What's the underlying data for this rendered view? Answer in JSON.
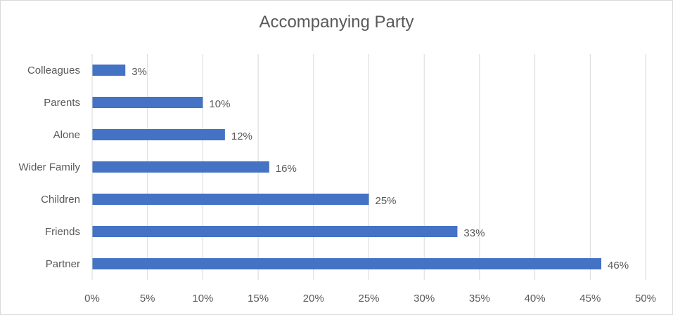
{
  "chart_data": {
    "type": "bar",
    "orientation": "horizontal",
    "title": "Accompanying Party",
    "xlabel": "",
    "ylabel": "",
    "categories": [
      "Colleagues",
      "Parents",
      "Alone",
      "Wider Family",
      "Children",
      "Friends",
      "Partner"
    ],
    "values": [
      3,
      10,
      12,
      16,
      25,
      33,
      46
    ],
    "data_labels": [
      "3%",
      "10%",
      "12%",
      "16%",
      "25%",
      "33%",
      "46%"
    ],
    "xlim": [
      0,
      50
    ],
    "x_ticks": [
      0,
      5,
      10,
      15,
      20,
      25,
      30,
      35,
      40,
      45,
      50
    ],
    "x_tick_labels": [
      "0%",
      "5%",
      "10%",
      "15%",
      "20%",
      "25%",
      "30%",
      "35%",
      "40%",
      "45%",
      "50%"
    ],
    "grid": "vertical",
    "legend": "none",
    "bar_color": "#4472c4",
    "grid_color": "#d9d9d9",
    "text_color": "#595959"
  }
}
